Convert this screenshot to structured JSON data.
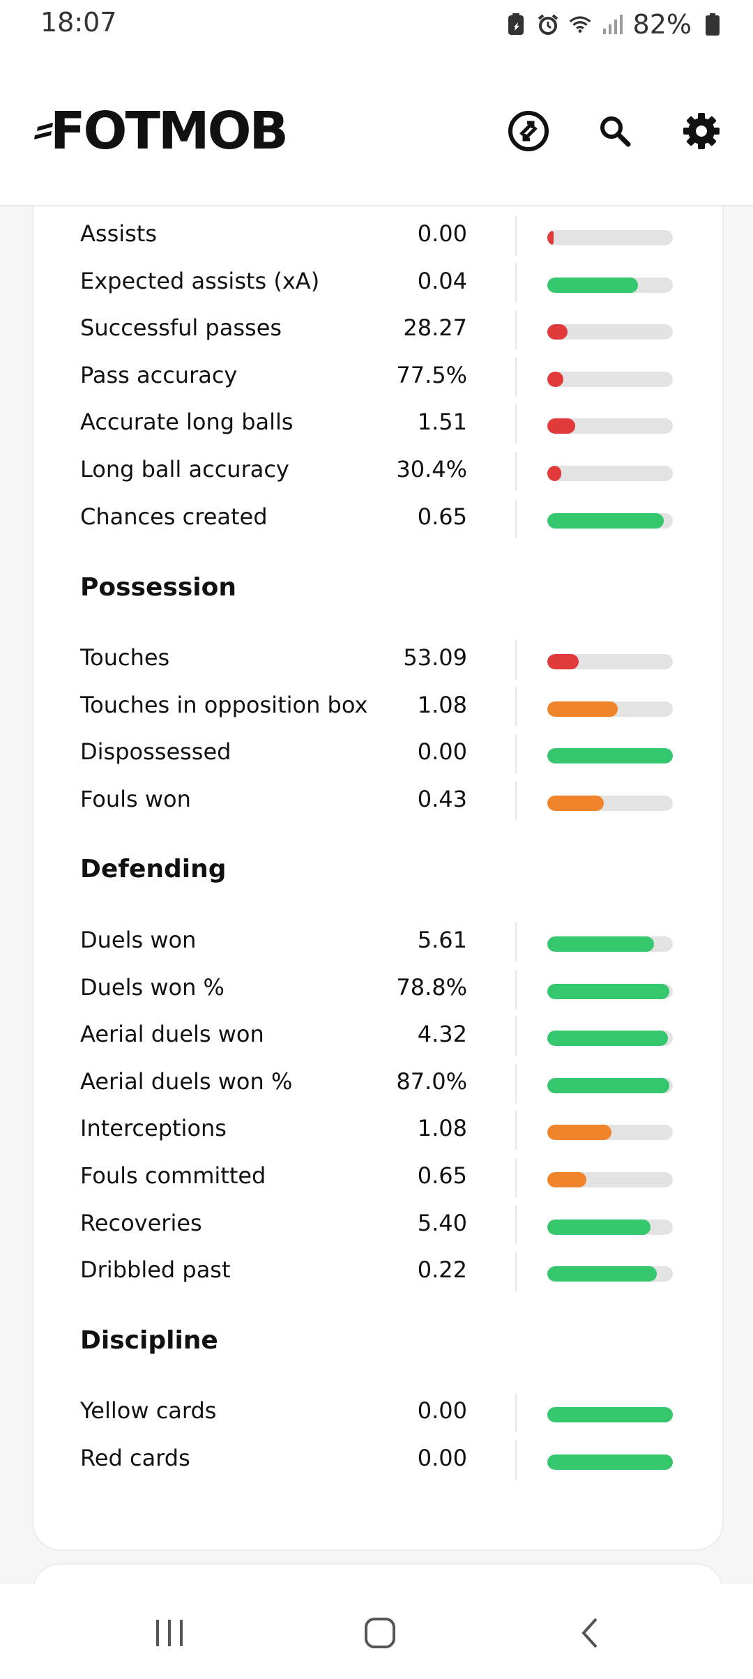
{
  "status_bar": {
    "time": "18:07",
    "battery": "82%",
    "icons": [
      "data-saver-icon",
      "alarm-icon",
      "wifi-icon",
      "signal-icon",
      "battery-icon"
    ]
  },
  "header": {
    "logo": "FOTMOB",
    "buttons": [
      "switch-icon",
      "search-icon",
      "settings-icon"
    ]
  },
  "colors": {
    "green": "#34c76e",
    "orange": "#f0842b",
    "red": "#e03a3a",
    "track": "#e3e3e3"
  },
  "passing_rows": [
    {
      "label": "Assists",
      "value": "0.00",
      "level": 0.02,
      "color": "red"
    },
    {
      "label": "Expected assists (xA)",
      "value": "0.04",
      "level": 0.72,
      "color": "green"
    },
    {
      "label": "Successful passes",
      "value": "28.27",
      "level": 0.16,
      "color": "red"
    },
    {
      "label": "Pass accuracy",
      "value": "77.5%",
      "level": 0.13,
      "color": "red"
    },
    {
      "label": "Accurate long balls",
      "value": "1.51",
      "level": 0.22,
      "color": "red"
    },
    {
      "label": "Long ball accuracy",
      "value": "30.4%",
      "level": 0.11,
      "color": "red"
    },
    {
      "label": "Chances created",
      "value": "0.65",
      "level": 0.93,
      "color": "green"
    }
  ],
  "sections": {
    "possession": "Possession",
    "defending": "Defending",
    "discipline": "Discipline"
  },
  "possession_rows": [
    {
      "label": "Touches",
      "value": "53.09",
      "level": 0.25,
      "color": "red"
    },
    {
      "label": "Touches in opposition box",
      "value": "1.08",
      "level": 0.56,
      "color": "orange"
    },
    {
      "label": "Dispossessed",
      "value": "0.00",
      "level": 1.0,
      "color": "green"
    },
    {
      "label": "Fouls won",
      "value": "0.43",
      "level": 0.45,
      "color": "orange"
    }
  ],
  "defending_rows": [
    {
      "label": "Duels won",
      "value": "5.61",
      "level": 0.85,
      "color": "green"
    },
    {
      "label": "Duels won %",
      "value": "78.8%",
      "level": 0.97,
      "color": "green"
    },
    {
      "label": "Aerial duels won",
      "value": "4.32",
      "level": 0.96,
      "color": "green"
    },
    {
      "label": "Aerial duels won %",
      "value": "87.0%",
      "level": 0.97,
      "color": "green"
    },
    {
      "label": "Interceptions",
      "value": "1.08",
      "level": 0.51,
      "color": "orange"
    },
    {
      "label": "Fouls committed",
      "value": "0.65",
      "level": 0.31,
      "color": "orange"
    },
    {
      "label": "Recoveries",
      "value": "5.40",
      "level": 0.82,
      "color": "green"
    },
    {
      "label": "Dribbled past",
      "value": "0.22",
      "level": 0.87,
      "color": "green"
    }
  ],
  "discipline_rows": [
    {
      "label": "Yellow cards",
      "value": "0.00",
      "level": 1.0,
      "color": "green"
    },
    {
      "label": "Red cards",
      "value": "0.00",
      "level": 1.0,
      "color": "green"
    }
  ],
  "navigation": [
    "recent-apps-icon",
    "home-icon",
    "back-icon"
  ]
}
